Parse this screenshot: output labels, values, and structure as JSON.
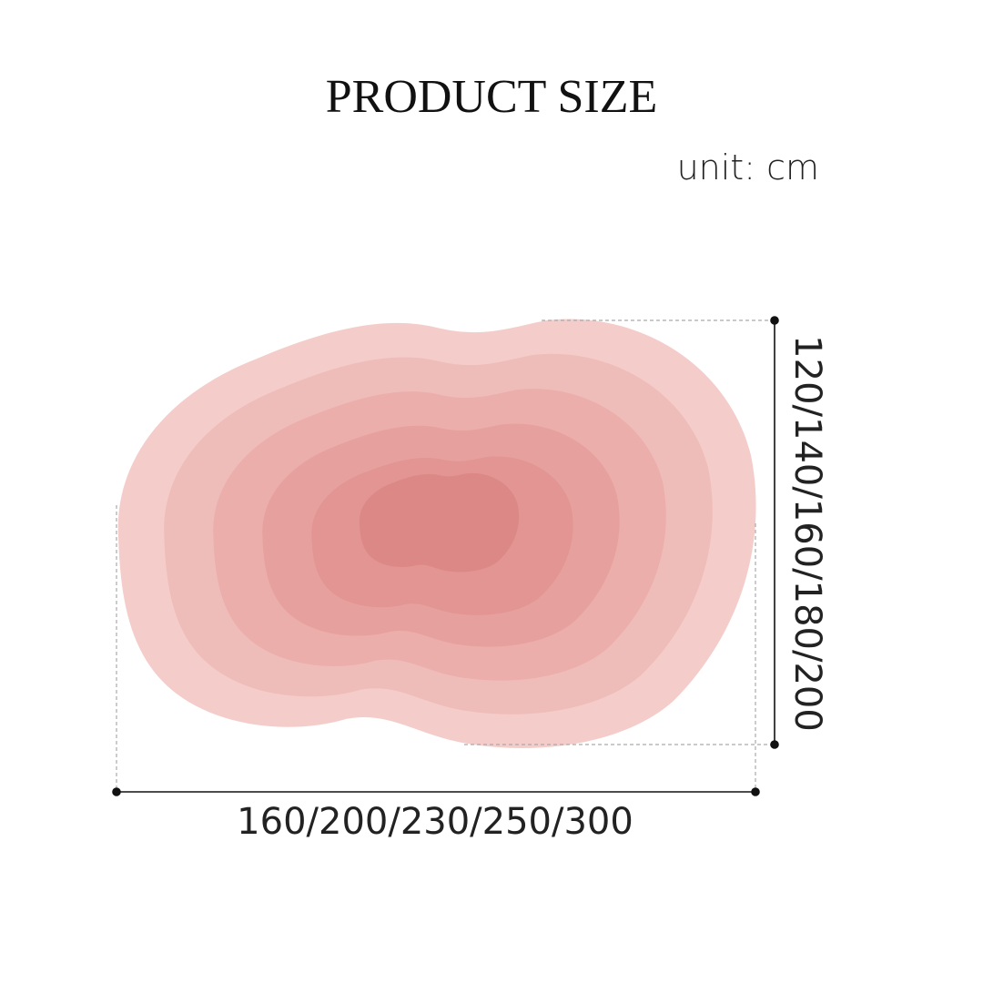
{
  "title": "PRODUCT SIZE",
  "unit": "unit: cm",
  "width_label": "160/200/230/250/300",
  "height_label": "120/140/160/180/200"
}
